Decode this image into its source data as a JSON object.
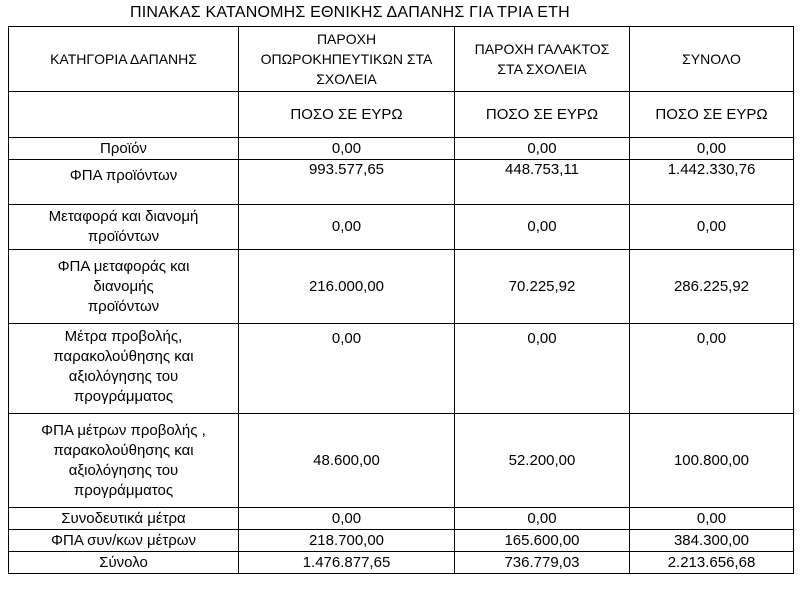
{
  "title": "ΠΙΝΑΚΑΣ ΚΑΤΑΝΟΜΗΣ ΕΘΝΙΚΗΣ ΔΑΠΑΝΗΣ ΓΙΑ ΤΡΙΑ ΕΤΗ",
  "header": {
    "category": "ΚΑΤΗΓΟΡΙΑ ΔΑΠΑΝΗΣ",
    "fruit": "ΠΑΡΟΧΗ\nΟΠΩΡΟΚΗΠΕΥΤΙΚΩΝ ΣΤΑ\nΣΧΟΛΕΙΑ",
    "milk": "ΠΑΡΟΧΗ ΓΑΛΑΚΤΟΣ\nΣΤΑ ΣΧΟΛΕΙΑ",
    "total": "ΣΥΝΟΛΟ",
    "amount_fruit": "ΠΟΣΟ ΣΕ ΕΥΡΩ",
    "amount_milk": "ΠΟΣΟ ΣΕ ΕΥΡΩ",
    "amount_total": "ΠΟΣΟ ΣΕ ΕΥΡΩ"
  },
  "rows": [
    {
      "category": "Προϊόν",
      "fruit": "0,00",
      "milk": "0,00",
      "total": "0,00"
    },
    {
      "category": "ΦΠΑ προϊόντων",
      "fruit": "993.577,65",
      "milk": "448.753,11",
      "total": "1.442.330,76"
    },
    {
      "category": "Μεταφορά και διανομή\nπροϊόντων",
      "fruit": "0,00",
      "milk": "0,00",
      "total": "0,00"
    },
    {
      "category": "ΦΠΑ μεταφοράς και\nδιανομής\nπροϊόντων",
      "fruit": "216.000,00",
      "milk": "70.225,92",
      "total": "286.225,92"
    },
    {
      "category": "Μέτρα προβολής,\nπαρακολούθησης και\nαξιολόγησης του\nπρογράμματος",
      "fruit": "0,00",
      "milk": "0,00",
      "total": "0,00"
    },
    {
      "category": "ΦΠΑ μέτρων προβολής ,\nπαρακολούθησης και\nαξιολόγησης του\nπρογράμματος",
      "fruit": "48.600,00",
      "milk": "52.200,00",
      "total": "100.800,00"
    },
    {
      "category": "Συνοδευτικά μέτρα",
      "fruit": "0,00",
      "milk": "0,00",
      "total": "0,00"
    },
    {
      "category": "ΦΠΑ συν/κων μέτρων",
      "fruit": "218.700,00",
      "milk": "165.600,00",
      "total": "384.300,00"
    }
  ],
  "sum": {
    "category": "Σύνολο",
    "fruit": "1.476.877,65",
    "milk": "736.779,03",
    "total": "2.213.656,68"
  }
}
